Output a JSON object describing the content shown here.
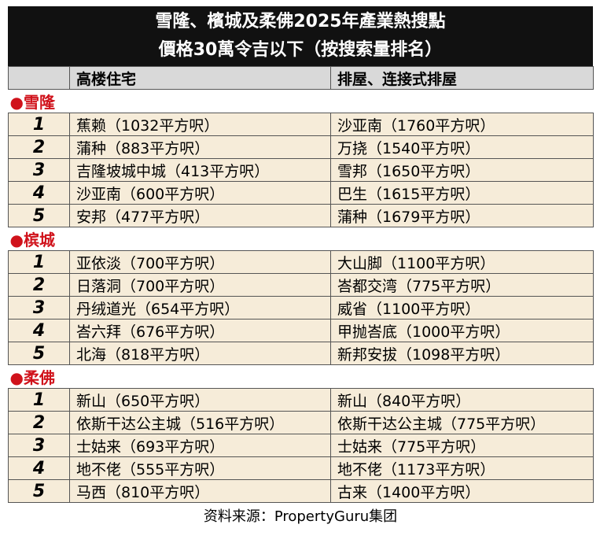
{
  "header": {
    "title_lines": [
      "雪隆、檳城及柔佛2025年產業熱搜點",
      "價格30萬令吉以下（按搜索量排名）"
    ]
  },
  "table": {
    "columns": [
      "高楼住宅",
      "排屋、连接式排屋"
    ],
    "sections": [
      {
        "name": "●雪隆",
        "rows": [
          {
            "rank": 1,
            "highrise": "蕉赖（1032平方呎）",
            "terrace": "沙亚南（1760平方呎）"
          },
          {
            "rank": 2,
            "highrise": "蒲种（883平方呎）",
            "terrace": "万挠（1540平方呎）"
          },
          {
            "rank": 3,
            "highrise": "吉隆坡城中城（413平方呎）",
            "terrace": "雪邦（1650平方呎）"
          },
          {
            "rank": 4,
            "highrise": "沙亚南（600平方呎）",
            "terrace": "巴生（1615平方呎）"
          },
          {
            "rank": 5,
            "highrise": "安邦（477平方呎）",
            "terrace": "蒲种（1679平方呎）"
          }
        ]
      },
      {
        "name": "●槟城",
        "rows": [
          {
            "rank": 1,
            "highrise": "亚依淡（700平方呎）",
            "terrace": "大山脚（1100平方呎）"
          },
          {
            "rank": 2,
            "highrise": "日落洞（700平方呎）",
            "terrace": "峇都交湾（775平方呎）"
          },
          {
            "rank": 3,
            "highrise": "丹绒道光（654平方呎）",
            "terrace": "威省（1100平方呎）"
          },
          {
            "rank": 4,
            "highrise": "峇六拜（676平方呎）",
            "terrace": "甲抛峇底（1000平方呎）"
          },
          {
            "rank": 5,
            "highrise": "北海（818平方呎）",
            "terrace": "新邦安拔（1098平方呎）"
          }
        ]
      },
      {
        "name": "●柔佛",
        "rows": [
          {
            "rank": 1,
            "highrise": "新山（650平方呎）",
            "terrace": "新山（840平方呎）"
          },
          {
            "rank": 2,
            "highrise": "依斯干达公主城（516平方呎）",
            "terrace": "依斯干达公主城（775平方呎）"
          },
          {
            "rank": 3,
            "highrise": "士姑来（693平方呎）",
            "terrace": "士姑来（775平方呎）"
          },
          {
            "rank": 4,
            "highrise": "地不佬（555平方呎）",
            "terrace": "地不佬（1173平方呎）"
          },
          {
            "rank": 5,
            "highrise": "马西（810平方呎）",
            "terrace": "古来（1400平方呎）"
          }
        ]
      }
    ]
  },
  "footer": {
    "source": "资料来源：PropertyGuru集团"
  }
}
